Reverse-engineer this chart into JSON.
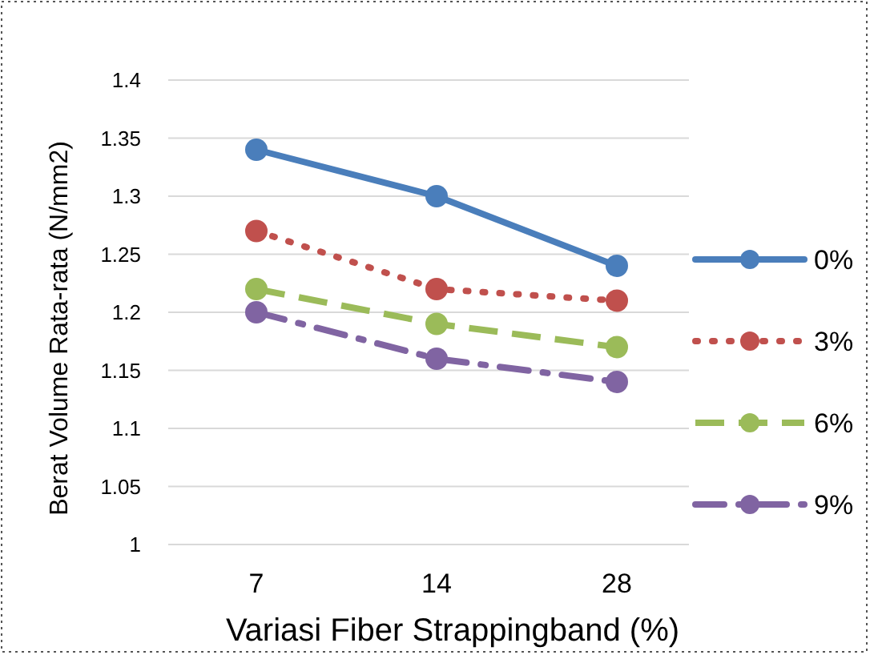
{
  "chart_data": {
    "type": "line",
    "xlabel": "Variasi Fiber Strappingband (%)",
    "ylabel": "Berat Volume Rata-rata (N/mm2)",
    "categories": [
      "7",
      "14",
      "28"
    ],
    "series": [
      {
        "name": "0%",
        "color": "#4a7ebb",
        "line_style": "solid",
        "values": [
          1.34,
          1.3,
          1.24
        ]
      },
      {
        "name": "3%",
        "color": "#c0504d",
        "line_style": "dotted",
        "values": [
          1.27,
          1.22,
          1.21
        ]
      },
      {
        "name": "6%",
        "color": "#9bbb59",
        "line_style": "dashed",
        "values": [
          1.22,
          1.19,
          1.17
        ]
      },
      {
        "name": "9%",
        "color": "#8064a2",
        "line_style": "dashdot",
        "values": [
          1.2,
          1.16,
          1.14
        ]
      }
    ],
    "ylim": [
      1,
      1.4
    ],
    "yticks": [
      {
        "value": 1,
        "label": "1"
      },
      {
        "value": 1.05,
        "label": "1.05"
      },
      {
        "value": 1.1,
        "label": "1.1"
      },
      {
        "value": 1.15,
        "label": "1.15"
      },
      {
        "value": 1.2,
        "label": "1.2"
      },
      {
        "value": 1.25,
        "label": "1.25"
      },
      {
        "value": 1.3,
        "label": "1.3"
      },
      {
        "value": 1.35,
        "label": "1.35"
      },
      {
        "value": 1.4,
        "label": "1.4"
      }
    ],
    "grid": "y",
    "legend": "right",
    "marker": "circle"
  }
}
